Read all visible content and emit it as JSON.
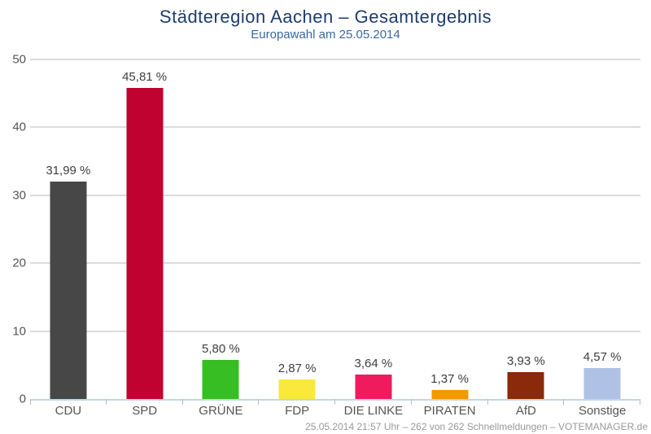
{
  "header": {
    "title": "Städteregion Aachen – Gesamtergebnis",
    "subtitle": "Europawahl am 25.05.2014"
  },
  "footer": {
    "status_line": "25.05.2014 21:57 Uhr – 262 von 262 Schnellmeldungen – VOTEMANAGER.de"
  },
  "chart_data": {
    "type": "bar",
    "title": "Städteregion Aachen – Gesamtergebnis",
    "subtitle": "Europawahl am 25.05.2014",
    "categories": [
      "CDU",
      "SPD",
      "GRÜNE",
      "FDP",
      "DIE LINKE",
      "PIRATEN",
      "AfD",
      "Sonstige"
    ],
    "values": [
      31.99,
      45.81,
      5.8,
      2.87,
      3.64,
      1.37,
      3.93,
      4.57
    ],
    "value_labels": [
      "31,99 %",
      "45,81 %",
      "5,80 %",
      "2,87 %",
      "3,64 %",
      "1,37 %",
      "3,93 %",
      "4,57 %"
    ],
    "bar_colors": [
      "#474747",
      "#C00230",
      "#36BE23",
      "#F8E93C",
      "#F01A5F",
      "#F79700",
      "#8A2A0A",
      "#AFC1E5"
    ],
    "xlabel": "",
    "ylabel": "",
    "ylim": [
      0,
      50
    ],
    "yticks": [
      0,
      10,
      20,
      30,
      40,
      50
    ],
    "grid": true,
    "legend": "none"
  },
  "colors": {
    "background": "#FFFFFF",
    "title": "#1E3C6E",
    "subtitle": "#3A68A0",
    "gridline": "#DCDCDC",
    "axis_line": "#C3D6E8",
    "tick": "#A9C0DA",
    "value_label": "#3F3F3F",
    "category_label": "#555555",
    "footer_text": "#999999"
  }
}
